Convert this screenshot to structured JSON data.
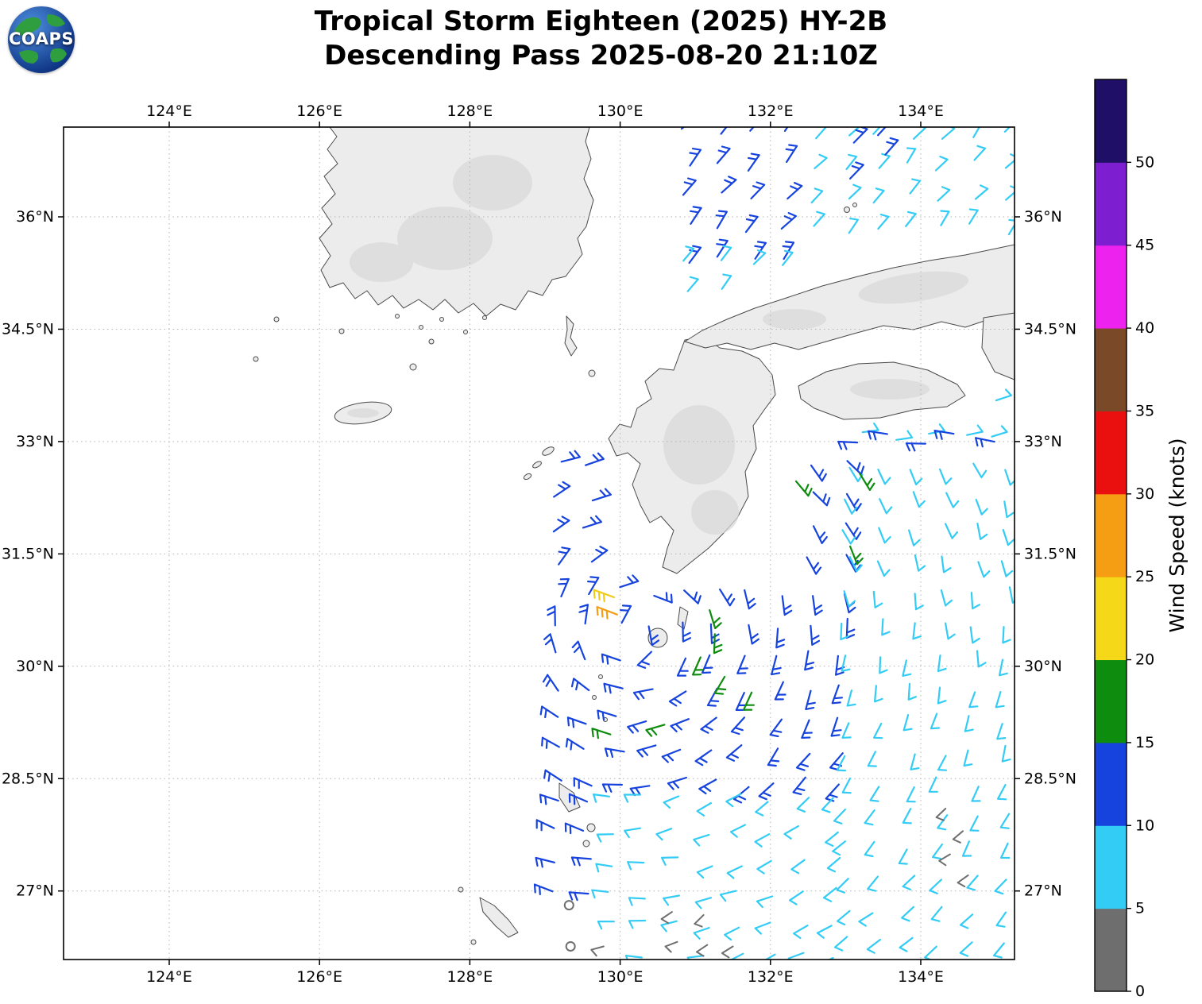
{
  "chart_data": {
    "type": "wind_barb_map",
    "title": "Tropical Storm Eighteen (2025) HY-2B",
    "subtitle": "Descending Pass 2025-08-20 21:10Z",
    "source_logo": "COAPS",
    "x_axis": {
      "ticks": [
        124,
        126,
        128,
        130,
        132,
        134
      ],
      "format": "{v}°E",
      "range": [
        122.6,
        135.25
      ]
    },
    "y_axis": {
      "ticks": [
        36,
        34.5,
        33,
        31.5,
        30,
        28.5,
        27
      ],
      "format": "{v}°N",
      "range": [
        26.06,
        37.2
      ]
    },
    "grid": true,
    "colorbar": {
      "label": "Wind Speed (knots)",
      "tick_values": [
        0,
        5,
        10,
        15,
        20,
        25,
        30,
        35,
        40,
        45,
        50
      ],
      "segments_bottom_to_top": [
        {
          "range": "0-5",
          "color": "#6e6e6e"
        },
        {
          "range": "5-10",
          "color": "#33ccf5"
        },
        {
          "range": "10-15",
          "color": "#1643dd"
        },
        {
          "range": "15-20",
          "color": "#0d8c0d"
        },
        {
          "range": "20-25",
          "color": "#f5d818"
        },
        {
          "range": "25-30",
          "color": "#f59d13"
        },
        {
          "range": "30-35",
          "color": "#ea1010"
        },
        {
          "range": "35-40",
          "color": "#7a4a28"
        },
        {
          "range": "40-45",
          "color": "#ee22ee"
        },
        {
          "range": "45-50",
          "color": "#7d1fd1"
        },
        {
          "range": "50+",
          "color": "#1f0f66"
        }
      ]
    },
    "wind_field": {
      "speed_colors": {
        "calm": "#6e6e6e",
        "light": "#33ccf5",
        "moderate": "#1643dd",
        "fresh": "#0d8c0d",
        "strong": "#f0cc18",
        "stronger": "#f59d13"
      },
      "storm_center": {
        "lon": 130.2,
        "lat": 30.5
      },
      "clusters": [
        {
          "name": "northeast-blue",
          "lon": [
            130.89,
            132.58
          ],
          "lat": [
            35.4,
            37.11
          ],
          "color": "moderate",
          "barbs": 2,
          "mode": "fixed",
          "angle": -50,
          "step": 40
        },
        {
          "name": "northeast-cyan",
          "lon": [
            132.58,
            135.15
          ],
          "lat": [
            35.66,
            37.11
          ],
          "color": "light",
          "barbs": 1,
          "mode": "fixed",
          "angle": -50,
          "step": 40
        },
        {
          "name": "northeast-cyan-lower",
          "lon": [
            130.89,
            132.58
          ],
          "lat": [
            34.67,
            35.4
          ],
          "color": "light",
          "barbs": 1,
          "mode": "fixed",
          "angle": -50,
          "step": 40
        },
        {
          "name": "inland-row-cyan",
          "lon": [
            133.22,
            135.15
          ],
          "lat": [
            33.08,
            33.54
          ],
          "color": "light",
          "barbs": 1,
          "mode": "fixed",
          "angle": -15,
          "step": 42
        },
        {
          "name": "inland-row-blue",
          "lon": [
            133.14,
            135.15
          ],
          "lat": [
            32.69,
            33.04
          ],
          "color": "moderate",
          "barbs": 2,
          "mode": "fixed",
          "angle": 185,
          "step": 42
        },
        {
          "name": "storm-core-blue",
          "lon": [
            129.15,
            133.01
          ],
          "lat": [
            28.24,
            32.69
          ],
          "color": "moderate",
          "barbs": 2,
          "mode": "cyclonic",
          "step": 40
        },
        {
          "name": "storm-east-cyan",
          "lon": [
            133.01,
            135.15
          ],
          "lat": [
            26.06,
            32.69
          ],
          "color": "light",
          "barbs": 1,
          "mode": "cyclonic",
          "step": 40
        },
        {
          "name": "storm-south-cyan",
          "lon": [
            129.9,
            133.01
          ],
          "lat": [
            26.06,
            28.24
          ],
          "color": "light",
          "barbs": 1,
          "mode": "cyclonic",
          "step": 40
        },
        {
          "name": "southwest-blue-edge",
          "lon": [
            129.15,
            129.9
          ],
          "lat": [
            26.9,
            28.24
          ],
          "color": "moderate",
          "barbs": 2,
          "mode": "cyclonic",
          "step": 40
        }
      ],
      "points": [
        {
          "lon": 132.34,
          "lat": 32.47,
          "color": "fresh",
          "barbs": 2,
          "mode": "cyclonic"
        },
        {
          "lon": 133.19,
          "lat": 32.57,
          "color": "fresh",
          "barbs": 2,
          "mode": "cyclonic"
        },
        {
          "lon": 133.06,
          "lat": 31.6,
          "color": "fresh",
          "barbs": 2,
          "mode": "cyclonic"
        },
        {
          "lon": 131.19,
          "lat": 30.75,
          "color": "fresh",
          "barbs": 2,
          "mode": "cyclonic"
        },
        {
          "lon": 131.26,
          "lat": 30.43,
          "color": "fresh",
          "barbs": 2,
          "mode": "cyclonic"
        },
        {
          "lon": 131.07,
          "lat": 30.12,
          "color": "fresh",
          "barbs": 2,
          "mode": "cyclonic"
        },
        {
          "lon": 131.39,
          "lat": 29.86,
          "color": "fresh",
          "barbs": 2,
          "mode": "cyclonic"
        },
        {
          "lon": 131.75,
          "lat": 29.65,
          "color": "fresh",
          "barbs": 2,
          "mode": "cyclonic"
        },
        {
          "lon": 130.59,
          "lat": 29.22,
          "color": "fresh",
          "barbs": 2,
          "mode": "cyclonic"
        },
        {
          "lon": 129.87,
          "lat": 29.09,
          "color": "fresh",
          "barbs": 2,
          "mode": "cyclonic"
        },
        {
          "lon": 129.92,
          "lat": 30.92,
          "color": "strong",
          "barbs": 3,
          "mode": "fixed",
          "angle": 200
        },
        {
          "lon": 129.96,
          "lat": 30.69,
          "color": "stronger",
          "barbs": 3,
          "mode": "fixed",
          "angle": 200
        },
        {
          "lon": 133.11,
          "lat": 36.99,
          "color": "moderate",
          "barbs": 2,
          "mode": "fixed",
          "angle": -50
        },
        {
          "lon": 133.53,
          "lat": 36.83,
          "color": "moderate",
          "barbs": 2,
          "mode": "fixed",
          "angle": -50
        },
        {
          "lon": 133.06,
          "lat": 36.51,
          "color": "moderate",
          "barbs": 2,
          "mode": "fixed",
          "angle": -50
        },
        {
          "lon": 133.43,
          "lat": 37.09,
          "color": "moderate",
          "barbs": 2,
          "mode": "fixed",
          "angle": -50
        },
        {
          "lon": 130.69,
          "lat": 26.72,
          "color": "calm",
          "barbs": 1,
          "mode": "fixed",
          "angle": 150
        },
        {
          "lon": 131.11,
          "lat": 26.68,
          "color": "calm",
          "barbs": 1,
          "mode": "fixed",
          "angle": 140
        },
        {
          "lon": 130.76,
          "lat": 26.32,
          "color": "calm",
          "barbs": 1,
          "mode": "fixed",
          "angle": 155
        },
        {
          "lon": 131.16,
          "lat": 26.28,
          "color": "calm",
          "barbs": 1,
          "mode": "fixed",
          "angle": 145
        },
        {
          "lon": 131.5,
          "lat": 26.26,
          "color": "calm",
          "barbs": 1,
          "mode": "fixed",
          "angle": 150
        },
        {
          "lon": 129.78,
          "lat": 26.26,
          "color": "calm",
          "barbs": 1,
          "mode": "fixed",
          "angle": 160
        },
        {
          "lon": 134.33,
          "lat": 28.1,
          "color": "calm",
          "barbs": 1,
          "mode": "fixed",
          "angle": 140
        },
        {
          "lon": 134.56,
          "lat": 27.8,
          "color": "calm",
          "barbs": 1,
          "mode": "fixed",
          "angle": 135
        },
        {
          "lon": 134.39,
          "lat": 27.49,
          "color": "calm",
          "barbs": 1,
          "mode": "fixed",
          "angle": 145
        },
        {
          "lon": 134.63,
          "lat": 27.21,
          "color": "calm",
          "barbs": 1,
          "mode": "fixed",
          "angle": 140
        }
      ],
      "calm_circles": [
        {
          "lon": 129.32,
          "lat": 26.81
        },
        {
          "lon": 129.34,
          "lat": 26.26
        }
      ],
      "land_mask": [
        {
          "lon": [
            131.69,
            135.33
          ],
          "lat": [
            34.1,
            35.13
          ]
        },
        {
          "lon": [
            132.32,
            134.7
          ],
          "lat": [
            33.22,
            34.14
          ]
        },
        {
          "lon": [
            129.73,
            132.19
          ],
          "lat": [
            31.08,
            32.77
          ]
        }
      ]
    }
  }
}
